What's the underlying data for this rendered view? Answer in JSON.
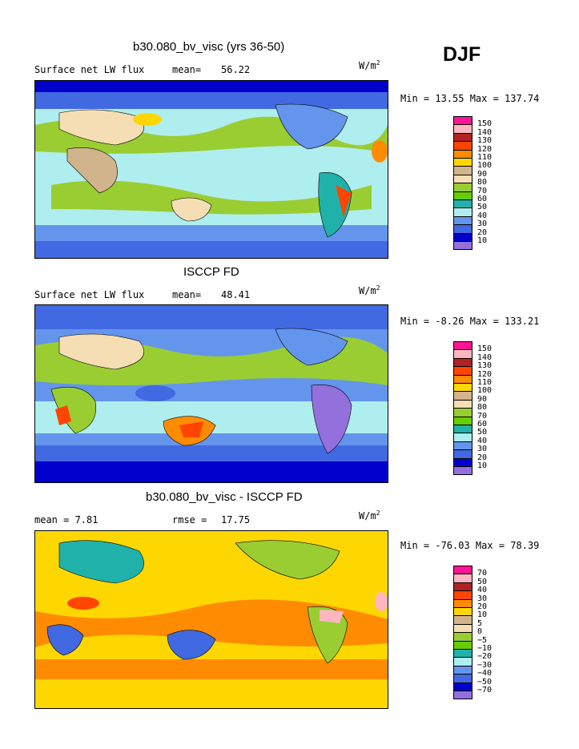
{
  "season": "DJF",
  "panels": [
    {
      "title": "b30.080_bv_visc (yrs 36-50)",
      "left_label": "Surface net LW flux",
      "stat_label": "mean=",
      "stat_value": "56.22",
      "units": "W/m",
      "units_sup": "2",
      "minmax": "Min =  13.55 Max = 137.74",
      "levels": [
        "150",
        "140",
        "130",
        "120",
        "110",
        "100",
        "90",
        "80",
        "70",
        "60",
        "50",
        "40",
        "30",
        "20",
        "10"
      ],
      "palette": [
        "#ff1493",
        "#ffb6c1",
        "#b22222",
        "#ff4500",
        "#ff8c00",
        "#ffd700",
        "#d2b48c",
        "#f5deb3",
        "#9acd32",
        "#66cd00",
        "#20b2aa",
        "#afeeee",
        "#6495ed",
        "#4169e1",
        "#0000cd",
        "#9370db"
      ]
    },
    {
      "title": "ISCCP FD",
      "left_label": "Surface net LW flux",
      "stat_label": "mean=",
      "stat_value": "48.41",
      "units": "W/m",
      "units_sup": "2",
      "minmax": "Min =  -8.26 Max = 133.21",
      "levels": [
        "150",
        "140",
        "130",
        "120",
        "110",
        "100",
        "90",
        "80",
        "70",
        "60",
        "50",
        "40",
        "30",
        "20",
        "10"
      ],
      "palette": [
        "#ff1493",
        "#ffb6c1",
        "#b22222",
        "#ff4500",
        "#ff8c00",
        "#ffd700",
        "#d2b48c",
        "#f5deb3",
        "#9acd32",
        "#66cd00",
        "#20b2aa",
        "#afeeee",
        "#6495ed",
        "#4169e1",
        "#0000cd",
        "#9370db"
      ]
    },
    {
      "title": "b30.080_bv_visc - ISCCP FD",
      "left_label": "mean =    7.81",
      "stat_label": "rmse =",
      "stat_value": "17.75",
      "units": "W/m",
      "units_sup": "2",
      "minmax": "Min = -76.03 Max =  78.39",
      "levels": [
        "70",
        "50",
        "40",
        "30",
        "20",
        "10",
        "5",
        "0",
        "−5",
        "−10",
        "−20",
        "−30",
        "−40",
        "−50",
        "−70"
      ],
      "palette": [
        "#ff1493",
        "#ffb6c1",
        "#b22222",
        "#ff4500",
        "#ff8c00",
        "#ffd700",
        "#d2b48c",
        "#f5deb3",
        "#9acd32",
        "#66cd00",
        "#20b2aa",
        "#afeeee",
        "#6495ed",
        "#4169e1",
        "#0000cd",
        "#9370db"
      ]
    }
  ]
}
